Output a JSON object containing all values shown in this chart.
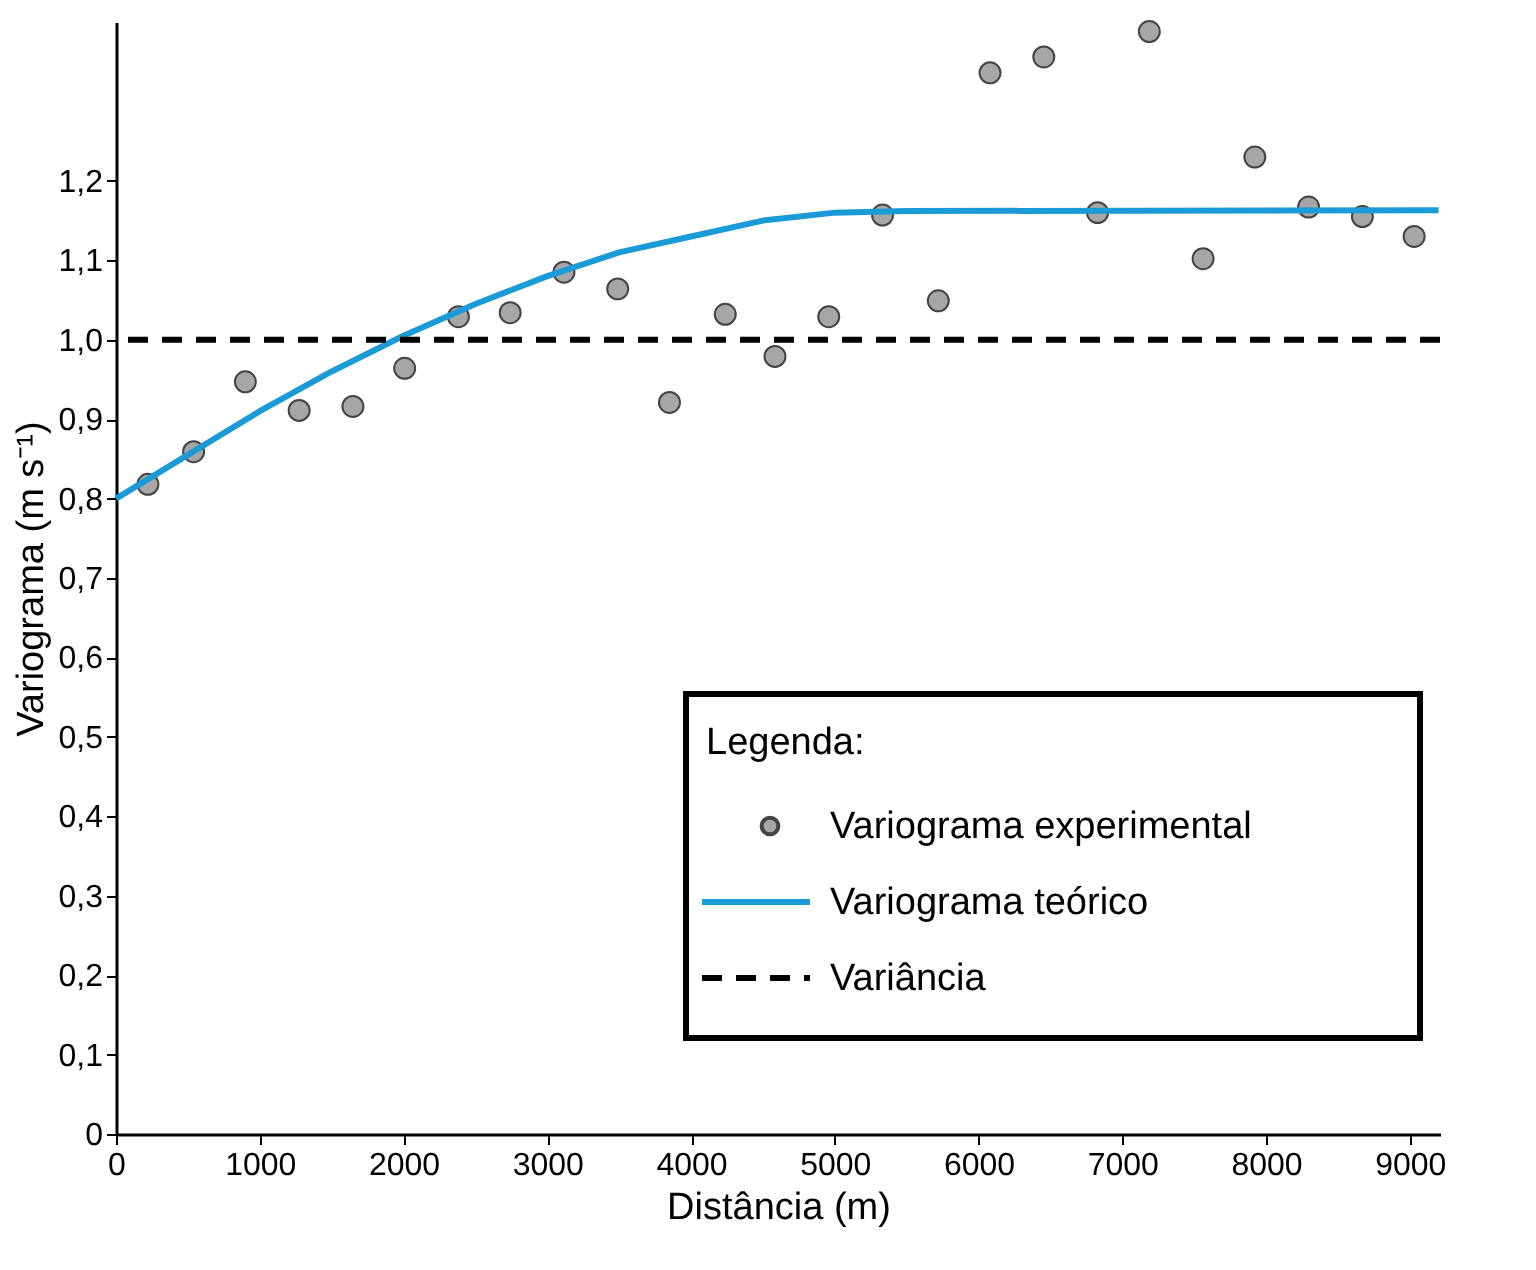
{
  "chart_data": {
    "type": "scatter",
    "xlabel": "Distância (m)",
    "ylabel": "Variograma (m s⁻¹)",
    "legend_title": "Legenda:",
    "legend": "bottom right",
    "grid": false,
    "xlim": [
      0,
      9210
    ],
    "ylim": [
      0,
      1.4
    ],
    "xticks": [
      0,
      1000,
      2000,
      3000,
      4000,
      5000,
      6000,
      7000,
      8000,
      9000
    ],
    "yticks": [
      0,
      {
        "value": 0.1,
        "label": "0,1"
      },
      {
        "value": 0.2,
        "label": "0,2"
      },
      {
        "value": 0.3,
        "label": "0,3"
      },
      {
        "value": 0.4,
        "label": "0,4"
      },
      {
        "value": 0.5,
        "label": "0,5"
      },
      {
        "value": 0.6,
        "label": "0,6"
      },
      {
        "value": 0.7,
        "label": "0,7"
      },
      {
        "value": 0.8,
        "label": "0,8"
      },
      {
        "value": 0.9,
        "label": "0,9"
      },
      {
        "value": 1.0,
        "label": "1,0"
      },
      {
        "value": 1.1,
        "label": "1,1"
      },
      {
        "value": 1.2,
        "label": "1,2"
      }
    ],
    "series": [
      {
        "name": "Variograma experimental",
        "marker": "circle",
        "color": "#a6a6a6",
        "x": [
          222,
          540,
          900,
          1274,
          1648,
          2008,
          2382,
          2742,
          3116,
          3490,
          3850,
          4238,
          4584,
          4958,
          5332,
          5720,
          6080,
          6454,
          6828,
          7188,
          7562,
          7922,
          8296,
          8670,
          9030
        ],
        "values": [
          0.818,
          0.859,
          0.947,
          0.911,
          0.916,
          0.964,
          1.029,
          1.034,
          1.085,
          1.064,
          0.921,
          1.032,
          0.979,
          1.029,
          1.157,
          1.049,
          1.336,
          1.356,
          1.16,
          1.388,
          1.102,
          1.23,
          1.167,
          1.155,
          1.13
        ]
      },
      {
        "name": "Variograma teórico",
        "type": "line",
        "marker": "none",
        "line_style": "solid",
        "color": "#1a9ad6",
        "x": [
          0,
          500,
          1000,
          1500,
          2000,
          2500,
          3000,
          3500,
          4000,
          4500,
          5000,
          5500,
          9200
        ],
        "values": [
          0.8,
          0.855,
          0.91,
          0.96,
          1.005,
          1.045,
          1.08,
          1.11,
          1.13,
          1.15,
          1.16,
          1.162,
          1.163
        ]
      }
    ],
    "ref_lines": [
      {
        "axis": "y",
        "value": 1.0,
        "label": "Variância",
        "color": "#000000",
        "line_style": "dashed"
      }
    ]
  }
}
